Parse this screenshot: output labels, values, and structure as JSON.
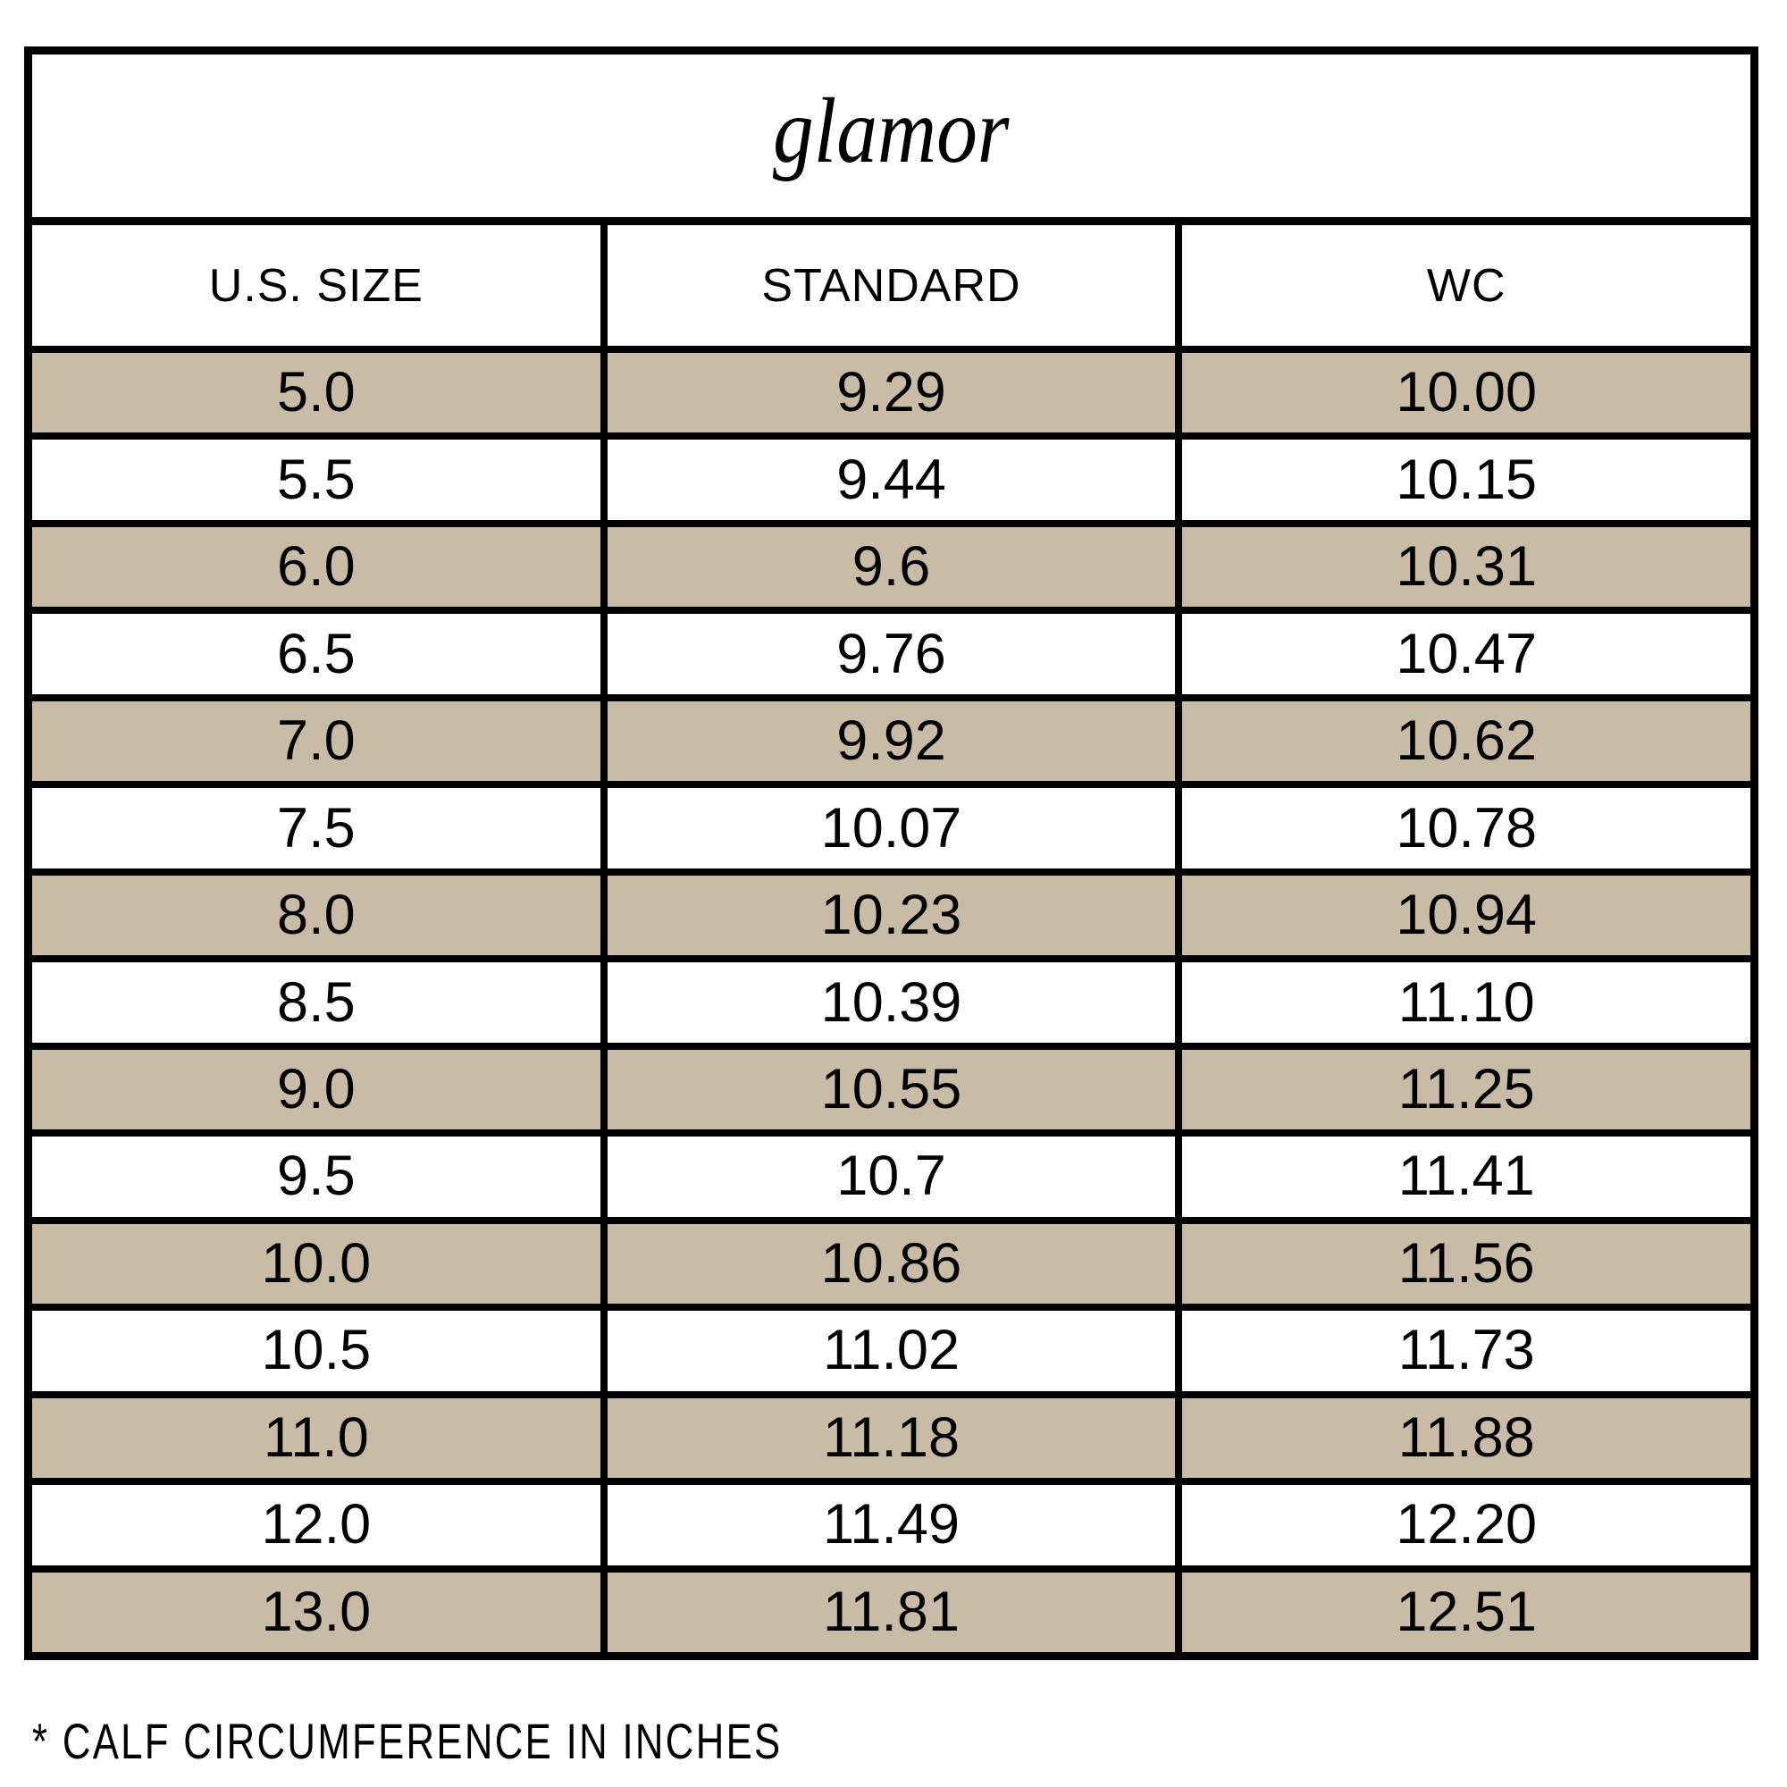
{
  "chart_data": {
    "type": "table",
    "title": "glamor",
    "columns": [
      "U.S. SIZE",
      "STANDARD",
      "WC"
    ],
    "rows": [
      [
        "5.0",
        "9.29",
        "10.00"
      ],
      [
        "5.5",
        "9.44",
        "10.15"
      ],
      [
        "6.0",
        "9.6",
        "10.31"
      ],
      [
        "6.5",
        "9.76",
        "10.47"
      ],
      [
        "7.0",
        "9.92",
        "10.62"
      ],
      [
        "7.5",
        "10.07",
        "10.78"
      ],
      [
        "8.0",
        "10.23",
        "10.94"
      ],
      [
        "8.5",
        "10.39",
        "11.10"
      ],
      [
        "9.0",
        "10.55",
        "11.25"
      ],
      [
        "9.5",
        "10.7",
        "11.41"
      ],
      [
        "10.0",
        "10.86",
        "11.56"
      ],
      [
        "10.5",
        "11.02",
        "11.73"
      ],
      [
        "11.0",
        "11.18",
        "11.88"
      ],
      [
        "12.0",
        "11.49",
        "12.20"
      ],
      [
        "13.0",
        "11.81",
        "12.51"
      ]
    ],
    "note": "* CALF CIRCUMFERENCE IN INCHES",
    "units": "inches",
    "layout_hints": {
      "shaded_rows": "odd rows starting with first",
      "grid": "thick black borders"
    }
  },
  "colors": {
    "row_highlight": "#C9BCA6",
    "border": "#000000",
    "text": "#000000",
    "background": "#FFFFFF"
  }
}
